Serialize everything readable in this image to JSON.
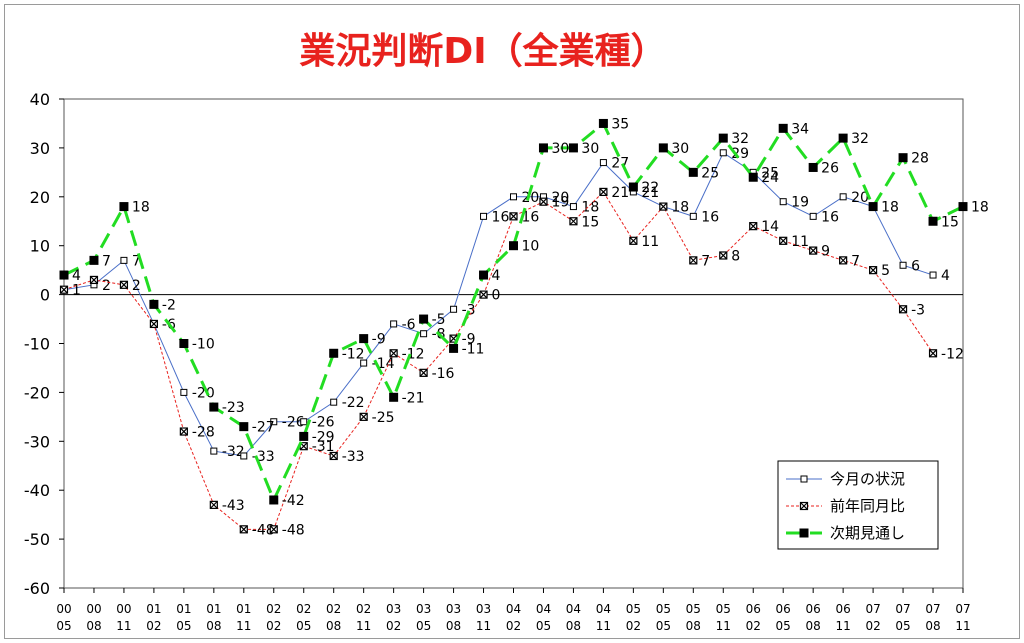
{
  "chart_data": {
    "type": "line",
    "title": "業況判断DI（全業種）",
    "ylim": [
      -60,
      40
    ],
    "y_ticks": [
      40,
      30,
      20,
      10,
      0,
      -10,
      -20,
      -30,
      -40,
      -50,
      -60
    ],
    "categories": [
      [
        "00",
        "05"
      ],
      [
        "00",
        "08"
      ],
      [
        "00",
        "11"
      ],
      [
        "01",
        "02"
      ],
      [
        "01",
        "05"
      ],
      [
        "01",
        "08"
      ],
      [
        "01",
        "11"
      ],
      [
        "02",
        "02"
      ],
      [
        "02",
        "05"
      ],
      [
        "02",
        "08"
      ],
      [
        "02",
        "11"
      ],
      [
        "03",
        "02"
      ],
      [
        "03",
        "05"
      ],
      [
        "03",
        "08"
      ],
      [
        "03",
        "11"
      ],
      [
        "04",
        "02"
      ],
      [
        "04",
        "05"
      ],
      [
        "04",
        "08"
      ],
      [
        "04",
        "11"
      ],
      [
        "05",
        "02"
      ],
      [
        "05",
        "05"
      ],
      [
        "05",
        "08"
      ],
      [
        "05",
        "11"
      ],
      [
        "06",
        "02"
      ],
      [
        "06",
        "05"
      ],
      [
        "06",
        "08"
      ],
      [
        "06",
        "11"
      ],
      [
        "07",
        "02"
      ],
      [
        "07",
        "05"
      ],
      [
        "07",
        "08"
      ],
      [
        "07",
        "11"
      ]
    ],
    "legend_position": "bottom-right",
    "grid": false,
    "series": [
      {
        "name": "今月の状況",
        "color": "#4a6fc8",
        "style": "solid",
        "marker": "open-square",
        "values": [
          1,
          2,
          7,
          -6,
          -20,
          -32,
          -33,
          -26,
          -26,
          -22,
          -14,
          -6,
          -8,
          -3,
          16,
          20,
          20,
          18,
          27,
          21,
          18,
          16,
          29,
          25,
          19,
          16,
          20,
          18,
          6,
          4,
          null
        ],
        "labels": [
          "1",
          "2",
          "7",
          "",
          "-20",
          "-32",
          "-33",
          "-26",
          "-26",
          "-22",
          "-14",
          "-6",
          "-8",
          "-3",
          "16",
          "20",
          "20",
          "18",
          "27",
          "21",
          "18",
          "16",
          "29",
          "25",
          "19",
          "16",
          "20",
          "",
          "6",
          "4",
          ""
        ]
      },
      {
        "name": "前年同月比",
        "color": "#e8221e",
        "style": "dotted",
        "marker": "x-square",
        "values": [
          1,
          3,
          2,
          -6,
          -28,
          -43,
          -48,
          -48,
          -31,
          -33,
          -25,
          -12,
          -16,
          -9,
          0,
          16,
          19,
          15,
          21,
          11,
          18,
          7,
          8,
          14,
          11,
          9,
          7,
          5,
          -3,
          -12,
          null
        ],
        "labels": [
          "",
          "",
          "2",
          "-6",
          "-28",
          "-43",
          "-48",
          "-48",
          "-31",
          "-33",
          "-25",
          "-12",
          "-16",
          "-9",
          "0",
          "16",
          "19",
          "15",
          "21",
          "11",
          "",
          "7",
          "8",
          "14",
          "11",
          "9",
          "7",
          "5",
          "-3",
          "-12",
          ""
        ]
      },
      {
        "name": "次期見通し",
        "color": "#22dd22",
        "style": "dashed",
        "marker": "filled-square",
        "values": [
          4,
          7,
          18,
          -2,
          -10,
          -23,
          -27,
          -42,
          -29,
          -12,
          -9,
          -21,
          -5,
          -11,
          4,
          10,
          30,
          30,
          35,
          22,
          30,
          25,
          32,
          24,
          34,
          26,
          32,
          18,
          28,
          15,
          18
        ],
        "labels": [
          "4",
          "7",
          "18",
          "-2",
          "-10",
          "-23",
          "-27",
          "-42",
          "-29",
          "-12",
          "-9",
          "-21",
          "-5",
          "-11",
          "4",
          "10",
          "30",
          "30",
          "35",
          "22",
          "30",
          "25",
          "32",
          "24",
          "34",
          "26",
          "32",
          "18",
          "28",
          "15",
          "18"
        ]
      }
    ]
  }
}
